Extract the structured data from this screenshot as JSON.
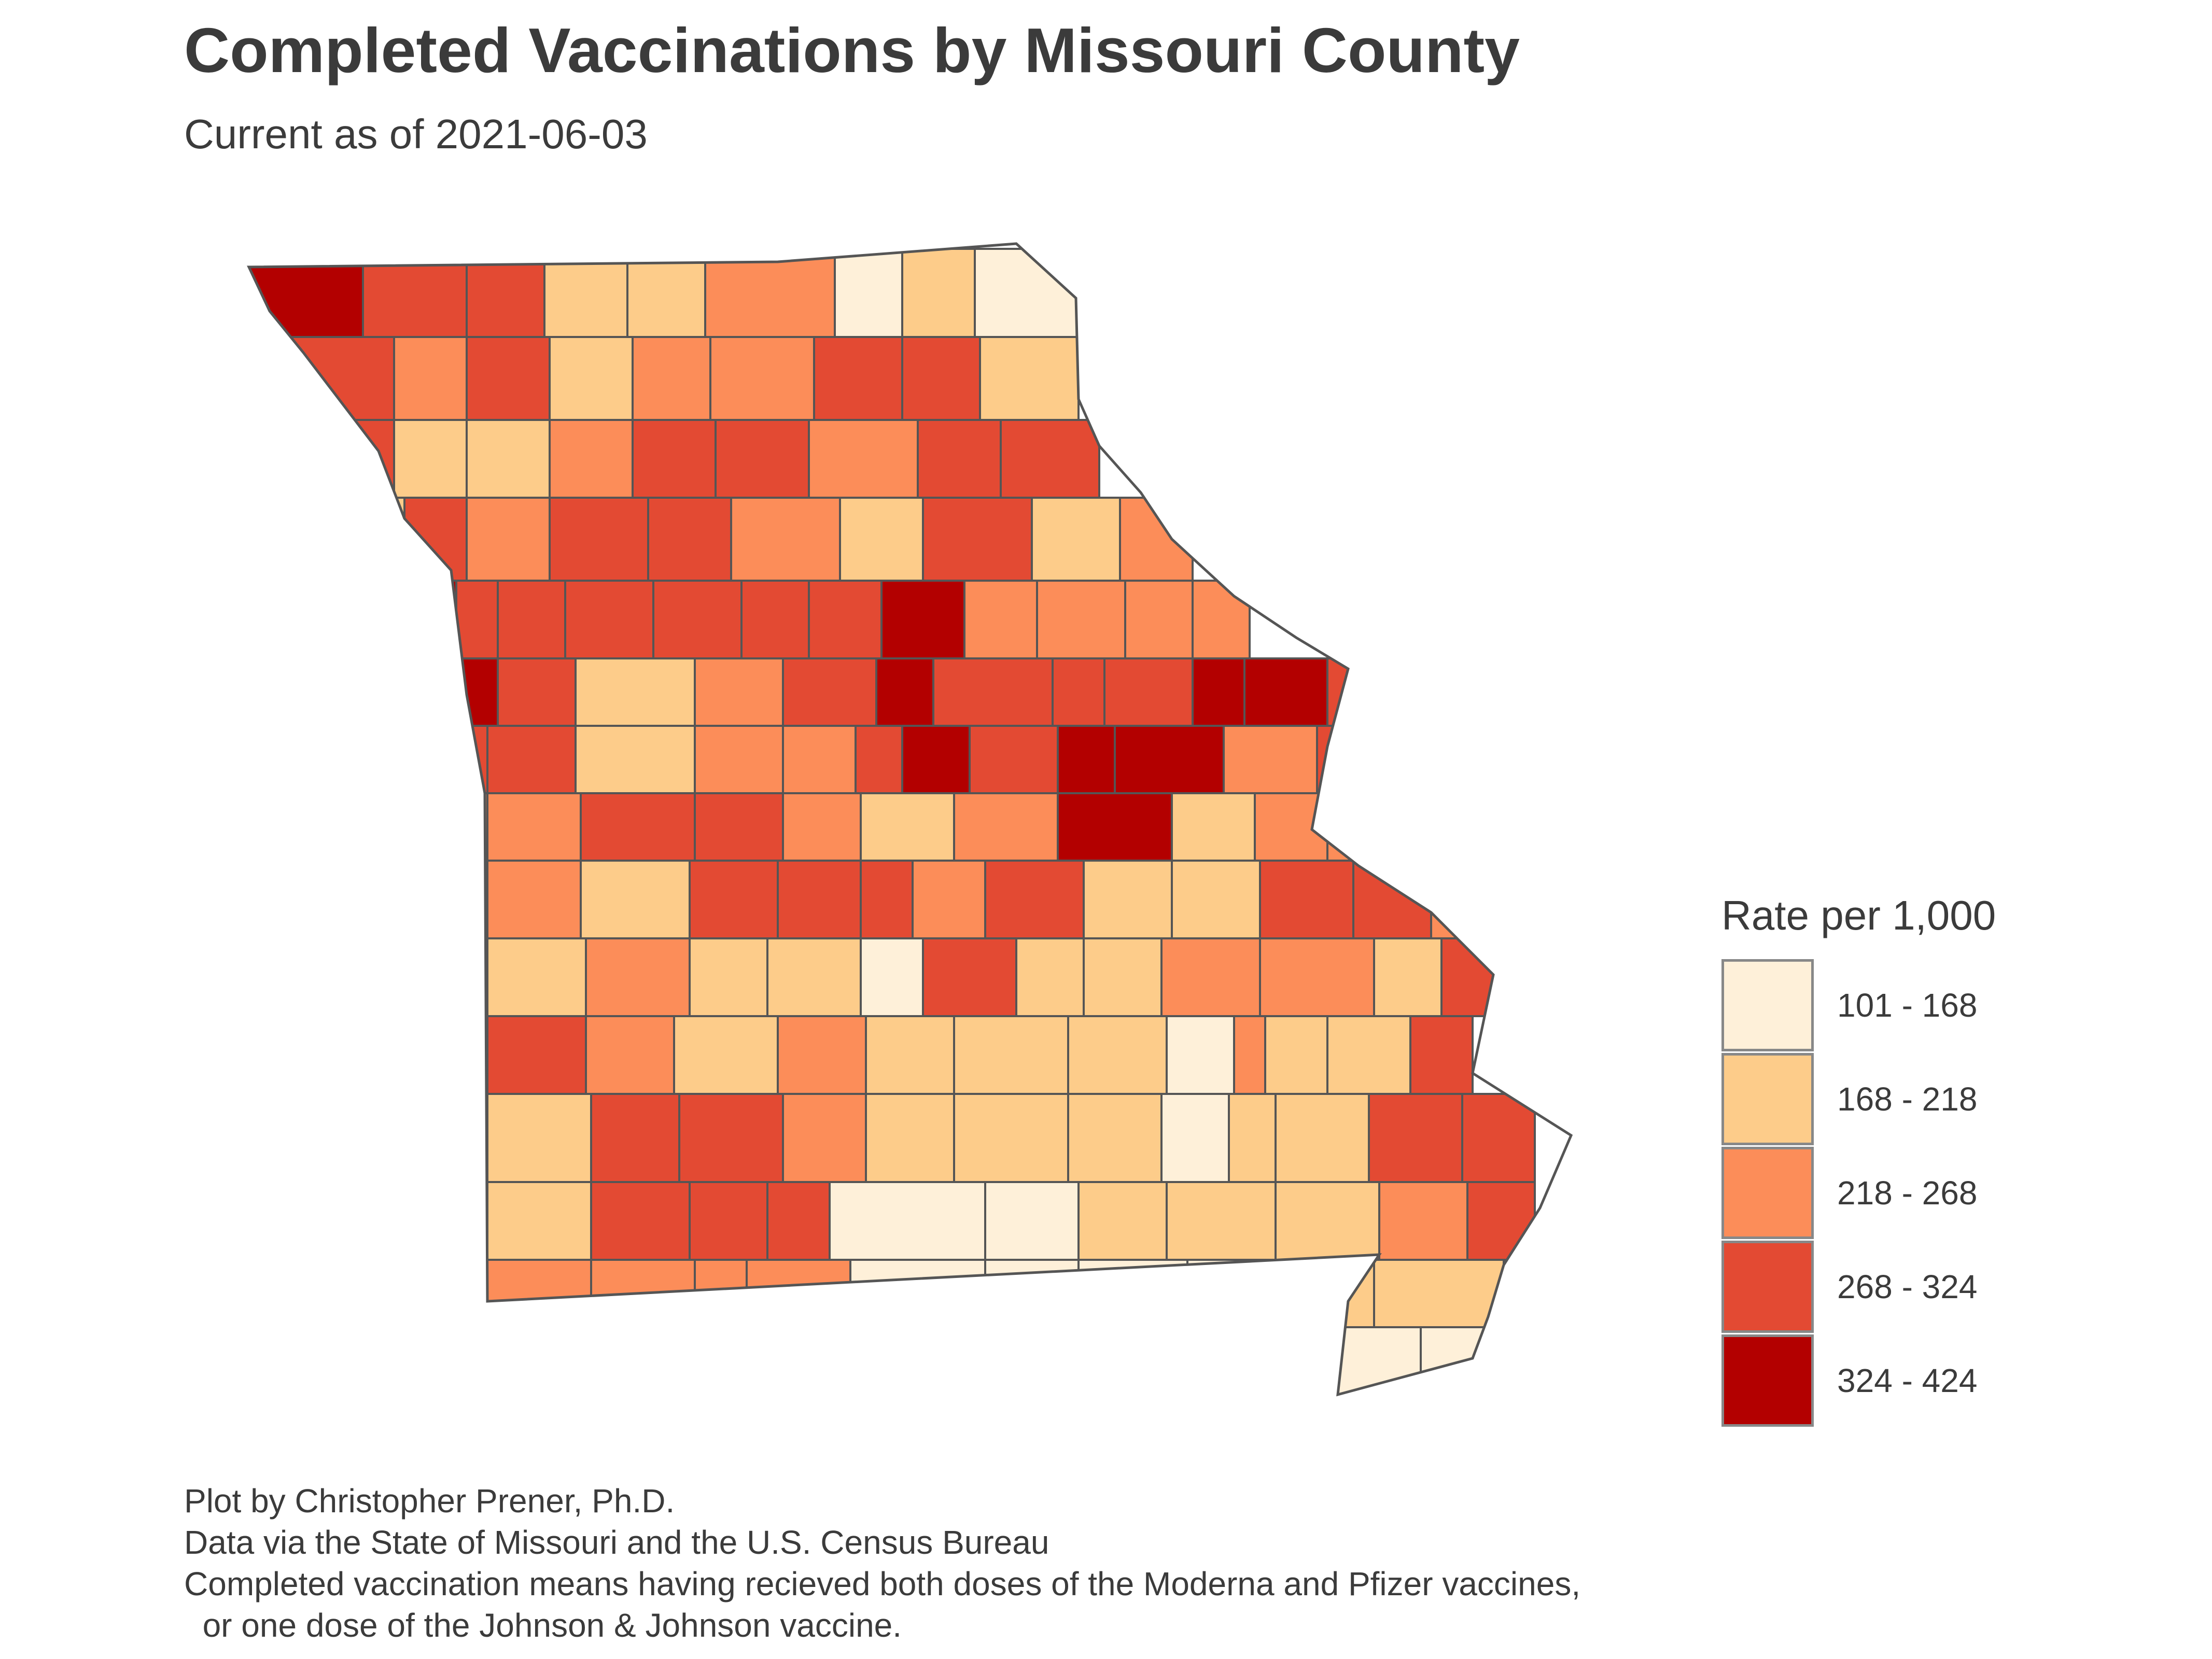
{
  "title": "Completed Vaccinations by Missouri County",
  "subtitle": "Current as of 2021-06-03",
  "legend": {
    "title": "Rate per 1,000",
    "classes": [
      {
        "label": "101 - 168",
        "color": "#fef0d9"
      },
      {
        "label": "168 - 218",
        "color": "#fdcc8a"
      },
      {
        "label": "218 - 268",
        "color": "#fc8d59"
      },
      {
        "label": "268 - 324",
        "color": "#e34a33"
      },
      {
        "label": "324 - 424",
        "color": "#b30000"
      }
    ]
  },
  "caption": {
    "lines": [
      "Plot by Christopher Prener, Ph.D.",
      "Data via the State of Missouri and the U.S. Census Bureau",
      "Completed vaccination means having recieved both doses of the Moderna and Pfizer vaccines,",
      "  or one dose of the Johnson & Johnson vaccine."
    ]
  },
  "colors": {
    "border": "#555555",
    "background": "#ffffff"
  }
}
